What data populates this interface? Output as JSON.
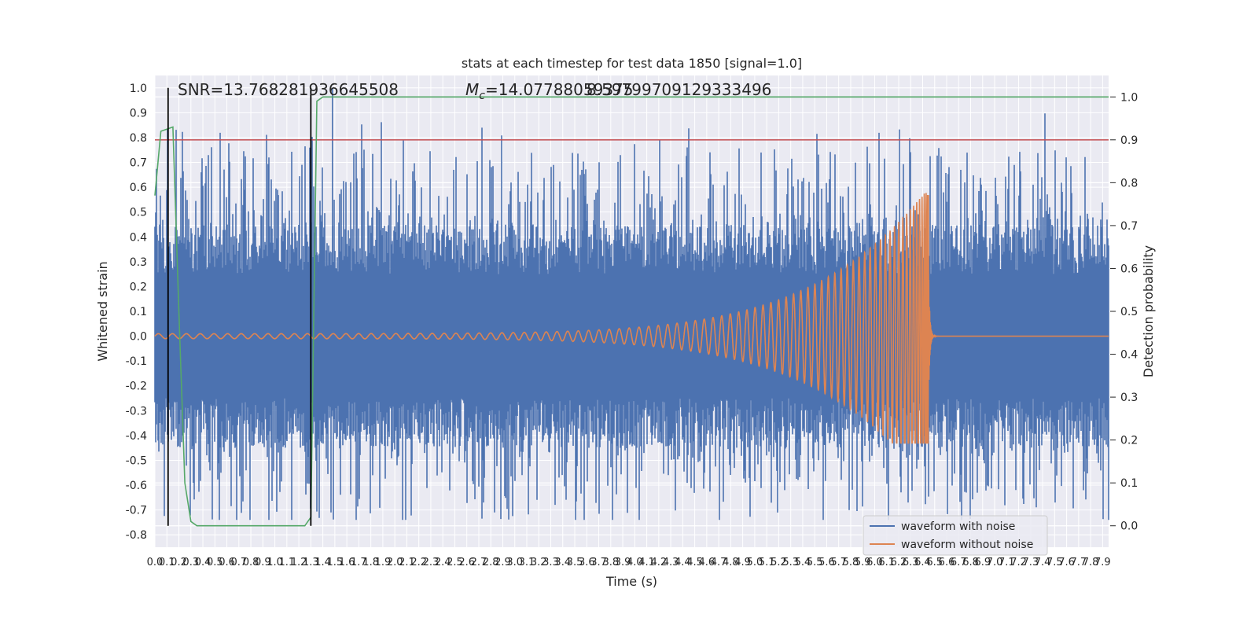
{
  "chart_data": {
    "type": "line",
    "title": "stats at each timestep for test data 1850 [signal=1.0]",
    "xlabel": "Time (s)",
    "ylabel": "Whitened strain",
    "ylabel_right": "Detection probability",
    "xlim": [
      0.0,
      7.95
    ],
    "ylim": [
      -0.85,
      1.05
    ],
    "ylim_right": [
      -0.05,
      1.05
    ],
    "x_ticks": [
      0.0,
      0.1,
      0.2,
      0.3,
      0.4,
      0.5,
      0.6,
      0.7,
      0.8,
      0.9,
      1.0,
      1.1,
      1.2,
      1.3,
      1.4,
      1.5,
      1.6,
      1.7,
      1.8,
      1.9,
      2.0,
      2.1,
      2.2,
      2.3,
      2.4,
      2.5,
      2.6,
      2.7,
      2.8,
      2.9,
      3.0,
      3.1,
      3.2,
      3.3,
      3.4,
      3.5,
      3.6,
      3.7,
      3.8,
      3.9,
      4.0,
      4.1,
      4.2,
      4.3,
      4.4,
      4.5,
      4.6,
      4.7,
      4.8,
      4.9,
      5.0,
      5.1,
      5.2,
      5.3,
      5.4,
      5.5,
      5.6,
      5.7,
      5.8,
      5.9,
      6.0,
      6.1,
      6.2,
      6.3,
      6.4,
      6.5,
      6.6,
      6.7,
      6.8,
      6.9,
      7.0,
      7.1,
      7.2,
      7.3,
      7.4,
      7.5,
      7.6,
      7.7,
      7.8,
      7.9
    ],
    "y_ticks": [
      1.0,
      0.9,
      0.8,
      0.7,
      0.6,
      0.5,
      0.4,
      0.3,
      0.2,
      0.1,
      0.0,
      -0.1,
      -0.2,
      -0.3,
      -0.4,
      -0.5,
      -0.6,
      -0.7,
      -0.8
    ],
    "y_ticks_right": [
      1.0,
      0.9,
      0.8,
      0.7,
      0.6,
      0.5,
      0.4,
      0.3,
      0.2,
      0.1,
      0.0
    ],
    "grid": true,
    "legend_position": "lower-right",
    "annotations": {
      "snr": "SNR=13.768281936645508",
      "mc_symbol": "M",
      "mc_sub": "c",
      "mc_value": "=14.07788059375",
      "overlap": "8.59799709129333496"
    },
    "series": [
      {
        "name": "waveform with noise",
        "color": "#4c72b0",
        "axis": "left",
        "description": "noisy whitened strain, amplitude roughly ±0.4 with spikes to about 1.0 (peak near t=1.48) and -0.75"
      },
      {
        "name": "waveform without noise",
        "color": "#dd8452",
        "axis": "left",
        "chirp_start_time": 0.0,
        "merger_time": 6.45,
        "start_amplitude": 0.01,
        "peak_amplitude_positive": 0.58,
        "peak_amplitude_negative": -0.43,
        "start_frequency_hz": 8.5,
        "post_merger_value": 0.0
      },
      {
        "name": "detection probability",
        "color": "#55a868",
        "axis": "right",
        "x": [
          0.0,
          0.05,
          0.1,
          0.15,
          0.2,
          0.25,
          0.3,
          0.35,
          0.45,
          0.6,
          1.0,
          1.2,
          1.25,
          1.3,
          1.35,
          1.4,
          1.5,
          2.0,
          7.95
        ],
        "y": [
          0.77,
          0.92,
          0.925,
          0.93,
          0.5,
          0.1,
          0.01,
          0.0,
          0.0,
          0.0,
          0.0,
          0.0,
          0.0,
          0.02,
          0.99,
          1.0,
          1.0,
          1.0,
          1.0
        ]
      }
    ],
    "threshold": {
      "axis": "right",
      "value": 0.9,
      "color": "#c44e52"
    },
    "vlines": [
      {
        "x": 0.11,
        "color": "#000000"
      },
      {
        "x": 1.3,
        "color": "#000000"
      }
    ]
  }
}
